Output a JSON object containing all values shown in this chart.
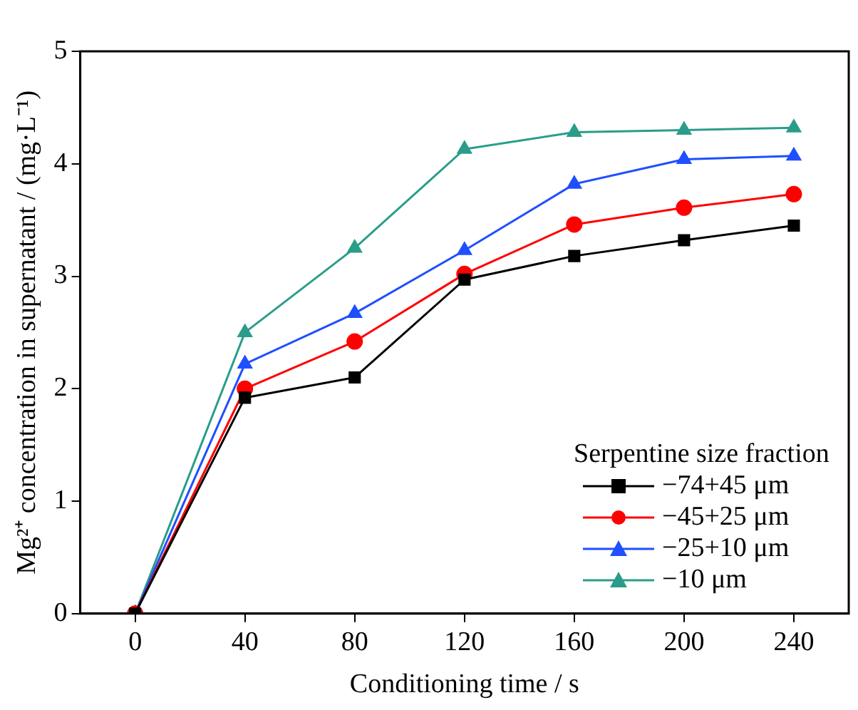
{
  "chart_data": {
    "type": "line",
    "xlabel": "Conditioning time / s",
    "ylabel": "Mg²⁺ concentration in supernatant / (mg·L⁻¹)",
    "legend_title": "Serpentine size fraction",
    "legend": "bottom right",
    "grid": false,
    "xlim": [
      -20,
      260
    ],
    "xticks": [
      0,
      40,
      80,
      120,
      160,
      200,
      240
    ],
    "ylim": [
      0,
      5
    ],
    "yticks": [
      0,
      1,
      2,
      3,
      4,
      5
    ],
    "x": [
      0,
      40,
      80,
      120,
      160,
      200,
      240
    ],
    "series": [
      {
        "name": "−74+45 μm",
        "color": "#000000",
        "marker": "square",
        "values": [
          0,
          1.92,
          2.1,
          2.97,
          3.18,
          3.32,
          3.45
        ]
      },
      {
        "name": "−45+25 μm",
        "color": "#ff0000",
        "marker": "circle",
        "values": [
          0,
          2.0,
          2.42,
          3.02,
          3.46,
          3.61,
          3.73
        ]
      },
      {
        "name": "−25+10 μm",
        "color": "#1f4fff",
        "marker": "triangle",
        "values": [
          0,
          2.22,
          2.67,
          3.23,
          3.82,
          4.04,
          4.07
        ]
      },
      {
        "name": "−10 μm",
        "color": "#2a9d8a",
        "marker": "triangle",
        "values": [
          0,
          2.5,
          3.25,
          4.13,
          4.28,
          4.3,
          4.32
        ]
      }
    ]
  }
}
